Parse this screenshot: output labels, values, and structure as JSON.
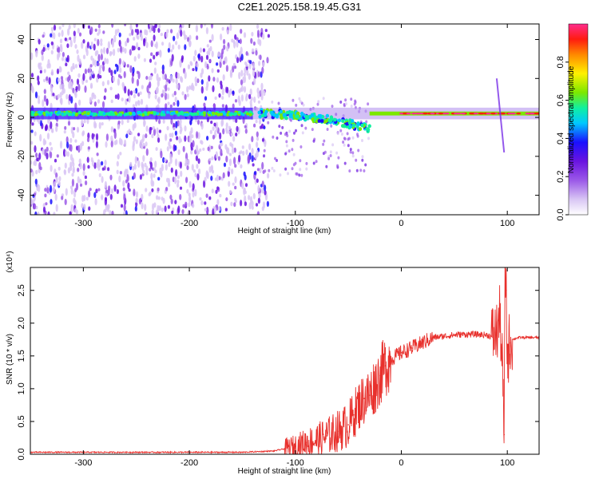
{
  "title": "C2E1.2025.158.19.45.G31",
  "colors": {
    "snr_line": "#e8302c",
    "spectrogram_ramp": [
      "#ffffff",
      "#d9c6f4",
      "#9b59e8",
      "#6a14e0",
      "#1a10ff",
      "#00c8ff",
      "#10f0a0",
      "#7be800",
      "#fff100",
      "#ff8800",
      "#ff1c10",
      "#ff2c8c"
    ]
  },
  "chart_data": [
    {
      "type": "heatmap",
      "xlabel": "Height of straight line (km)",
      "ylabel": "Frequency (Hz)",
      "xlim": [
        -350,
        130
      ],
      "ylim": [
        -50,
        48
      ],
      "xticks": [
        -300,
        -200,
        -100,
        0,
        100
      ],
      "xtick_labels": [
        "-300",
        "-200",
        "-100",
        "0",
        "100"
      ],
      "yticks": [
        -40,
        -20,
        0,
        20,
        40
      ],
      "ytick_labels": [
        "-40",
        "-20",
        "0",
        "20",
        "40"
      ],
      "colorbar": {
        "label": "Normalized spectral amplitude",
        "range": [
          0,
          1
        ],
        "ticks": [
          0.0,
          0.2,
          0.4,
          0.6,
          0.8
        ],
        "tick_labels": [
          "0.0",
          "0.2",
          "0.4",
          "0.6",
          "0.8"
        ]
      },
      "features": {
        "noisy_region_x": [
          -350,
          -135
        ],
        "carrier_line_freq": 2,
        "strong_band_x": [
          -30,
          130
        ],
        "spike_x": 93
      }
    },
    {
      "type": "line",
      "xlabel": "Height of straight line (km)",
      "ylabel": "SNR (10 * v/v)",
      "yscale_label": "(x10⁴)",
      "xlim": [
        -350,
        130
      ],
      "ylim": [
        0,
        2.85
      ],
      "xticks": [
        -300,
        -200,
        -100,
        0,
        100
      ],
      "xtick_labels": [
        "-300",
        "-200",
        "-100",
        "0",
        "100"
      ],
      "yticks": [
        0.0,
        0.5,
        1.0,
        1.5,
        2.0,
        2.5
      ],
      "ytick_labels": [
        "0.0",
        "0.5",
        "1.0",
        "1.5",
        "2.0",
        "2.5"
      ],
      "series": [
        {
          "x": [
            -350,
            -300,
            -250,
            -200,
            -150,
            -120,
            -100,
            -90,
            -80,
            -70,
            -60,
            -50,
            -45,
            -40,
            -35,
            -30,
            -25,
            -20,
            -15,
            -10,
            -5,
            0,
            10,
            20,
            30,
            40,
            50,
            60,
            70,
            80,
            85,
            90,
            93,
            95,
            97,
            98,
            99,
            100,
            102,
            105,
            110,
            120,
            130
          ],
          "y": [
            0.03,
            0.03,
            0.03,
            0.03,
            0.03,
            0.05,
            0.12,
            0.18,
            0.22,
            0.28,
            0.35,
            0.45,
            0.6,
            0.75,
            0.85,
            0.9,
            1.05,
            1.2,
            1.35,
            1.45,
            1.5,
            1.55,
            1.62,
            1.7,
            1.78,
            1.8,
            1.82,
            1.83,
            1.83,
            1.82,
            1.8,
            1.85,
            2.1,
            1.5,
            0.3,
            2.85,
            2.5,
            1.4,
            1.7,
            1.75,
            1.78,
            1.78,
            1.78
          ]
        }
      ]
    }
  ]
}
